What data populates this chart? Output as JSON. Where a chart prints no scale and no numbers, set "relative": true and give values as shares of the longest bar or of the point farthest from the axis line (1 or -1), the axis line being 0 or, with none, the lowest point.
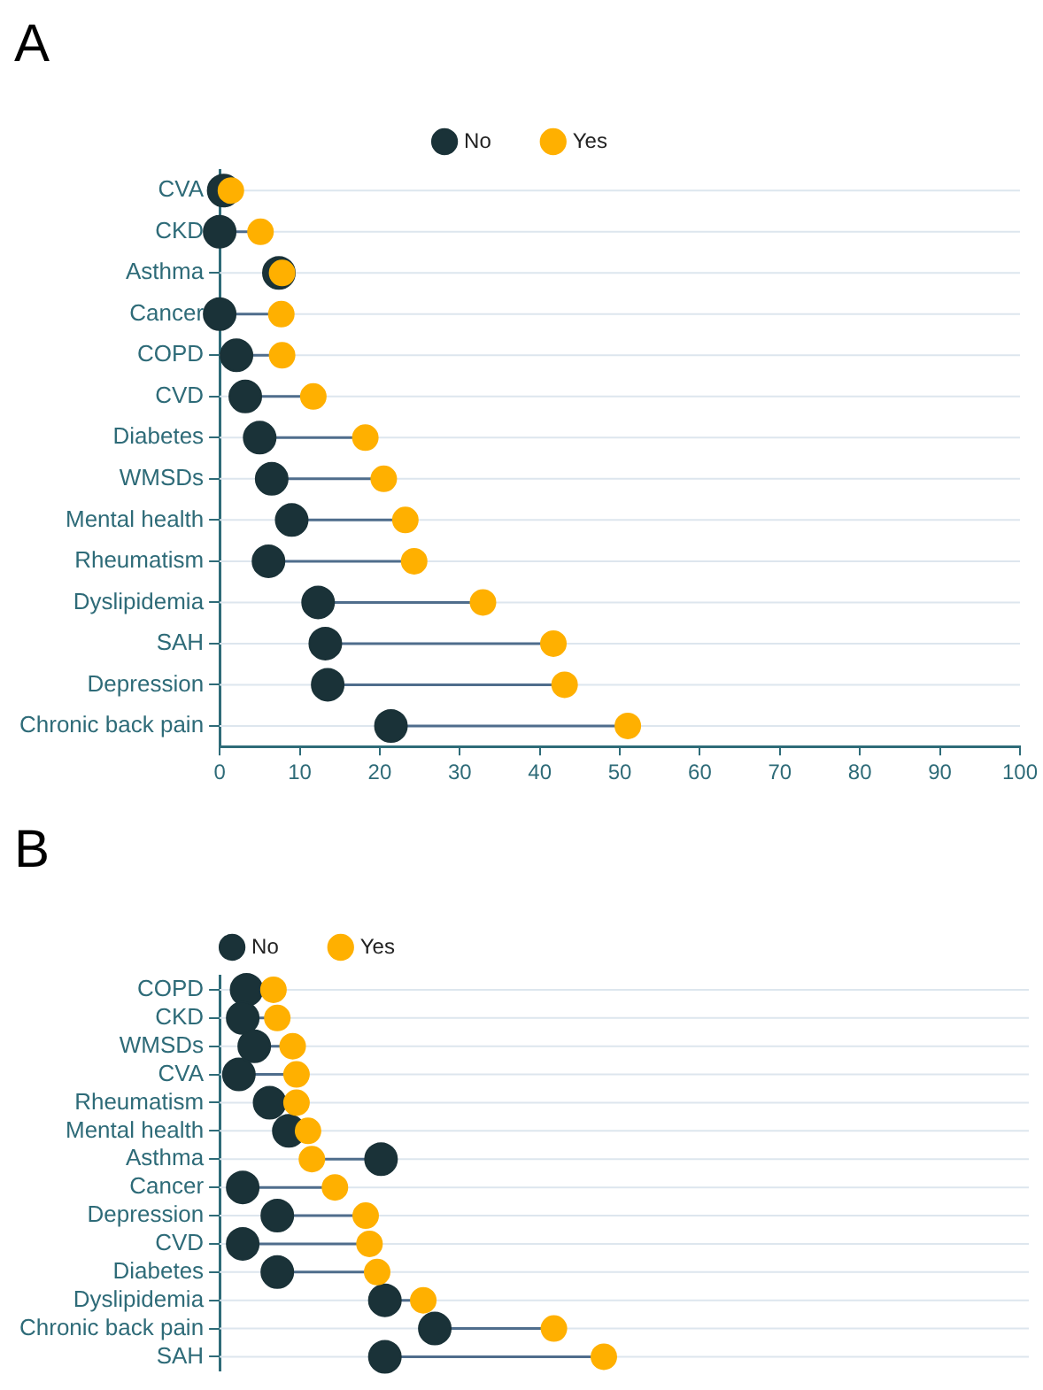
{
  "chart_data": [
    {
      "type": "scatter",
      "title": "A",
      "orientation": "horizontal",
      "marker": "circle",
      "legend": "top",
      "grid": "y",
      "categories": [
        "CVA",
        "CKD",
        "Asthma",
        "Cancer",
        "COPD",
        "CVD",
        "Diabetes",
        "WMSDs",
        "Mental health",
        "Rheumatism",
        "Dyslipidemia",
        "SAH",
        "Depression",
        "Chronic back pain"
      ],
      "series": [
        {
          "name": "No",
          "color": "#1a3238",
          "values": [
            0.5,
            0,
            7.4,
            0,
            2.1,
            3.2,
            5.0,
            6.5,
            9.0,
            6.1,
            12.3,
            13.2,
            13.5,
            21.4
          ]
        },
        {
          "name": "Yes",
          "color": "#ffb000",
          "values": [
            1.4,
            5.1,
            7.8,
            7.7,
            7.8,
            11.7,
            18.2,
            20.5,
            23.2,
            24.3,
            32.9,
            41.7,
            43.1,
            51.0
          ]
        }
      ],
      "xlim": [
        0,
        100
      ],
      "xticks": [
        0,
        10,
        20,
        30,
        40,
        50,
        60,
        70,
        80,
        90,
        100
      ]
    },
    {
      "type": "scatter",
      "title": "B",
      "orientation": "horizontal",
      "marker": "circle",
      "legend": "top",
      "grid": "y",
      "relative": true,
      "tick_labels": "y",
      "categories": [
        "COPD",
        "CKD",
        "WMSDs",
        "CVA",
        "Rheumatism",
        "Mental health",
        "Asthma",
        "Cancer",
        "Depression",
        "CVD",
        "Diabetes",
        "Dyslipidemia",
        "Chronic back pain",
        "SAH"
      ],
      "series": [
        {
          "name": "No",
          "color": "#1a3238",
          "values": [
            0.07,
            0.06,
            0.09,
            0.05,
            0.13,
            0.18,
            0.42,
            0.06,
            0.15,
            0.06,
            0.15,
            0.43,
            0.56,
            0.43
          ]
        },
        {
          "name": "Yes",
          "color": "#ffb000",
          "values": [
            0.14,
            0.15,
            0.19,
            0.2,
            0.2,
            0.23,
            0.24,
            0.3,
            0.38,
            0.39,
            0.41,
            0.53,
            0.87,
            1
          ]
        }
      ]
    }
  ]
}
